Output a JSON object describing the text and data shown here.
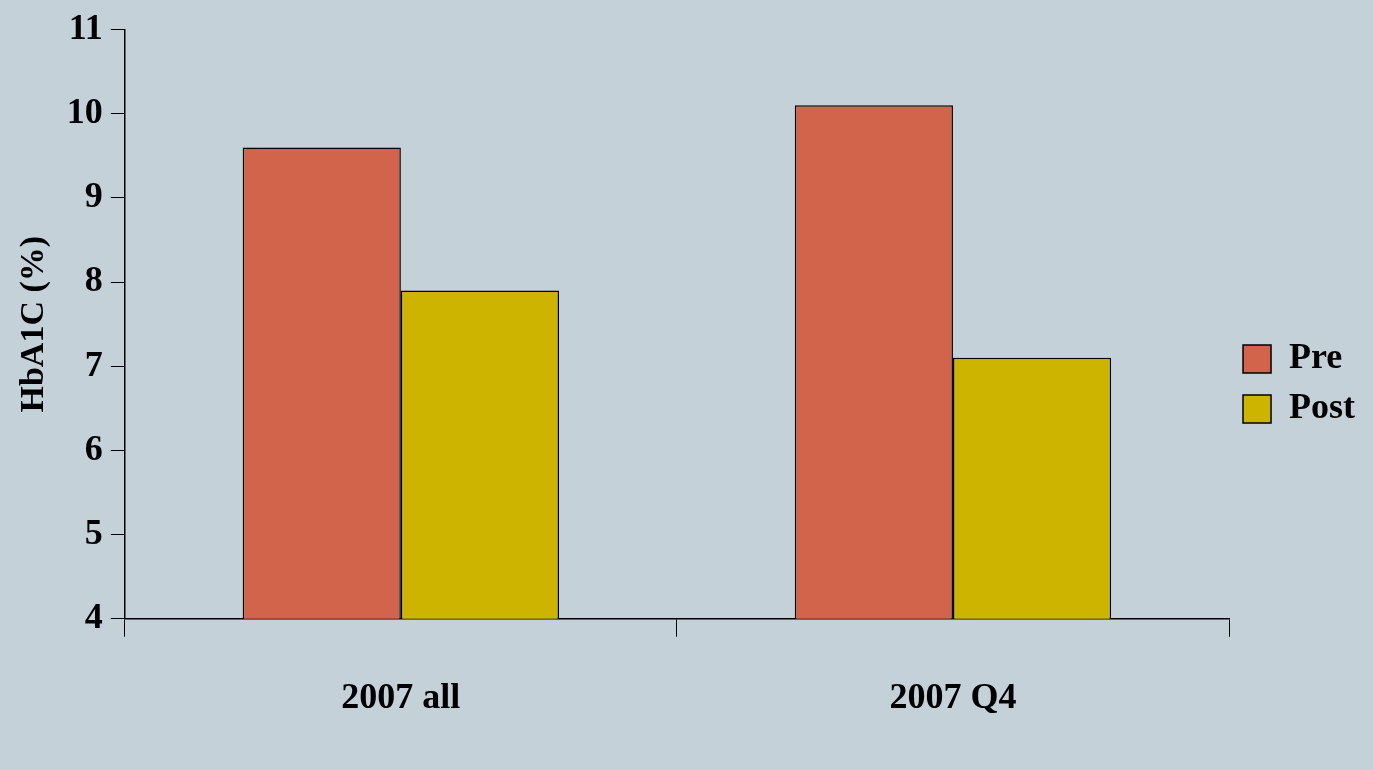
{
  "chart_data": {
    "type": "bar",
    "ylabel": "HbA1C (%)",
    "categories": [
      "2007 all",
      "2007 Q4"
    ],
    "series": [
      {
        "name": "Pre",
        "color": "#d2644b",
        "values": [
          9.6,
          10.1
        ]
      },
      {
        "name": "Post",
        "color": "#cdb400",
        "values": [
          7.9,
          7.1
        ]
      }
    ],
    "ylim": [
      4,
      11
    ],
    "yticks": [
      4,
      5,
      6,
      7,
      8,
      9,
      10,
      11
    ],
    "grid": false,
    "legend": "right"
  }
}
